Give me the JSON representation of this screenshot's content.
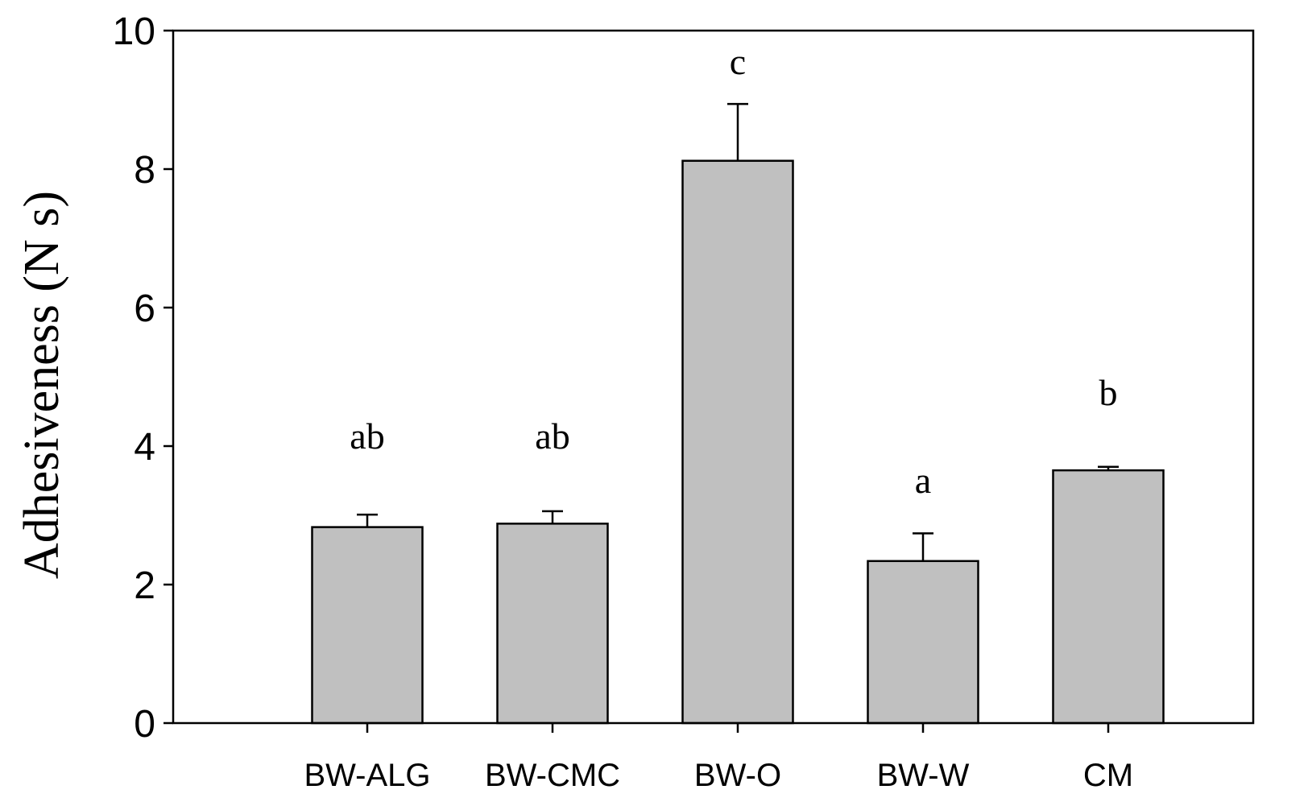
{
  "chart_data": {
    "type": "bar",
    "title": "",
    "xlabel": "",
    "ylabel": "Adhesiveness (N s)",
    "ylim": [
      0,
      10
    ],
    "yticks": [
      0,
      2,
      4,
      6,
      8,
      10
    ],
    "ytick_labels": [
      "0",
      "2",
      "4",
      "6",
      "8",
      "10"
    ],
    "categories": [
      "BW-ALG",
      "BW-CMC",
      "BW-O",
      "BW-W",
      "CM"
    ],
    "values": [
      2.83,
      2.88,
      8.12,
      2.34,
      3.65
    ],
    "errors": [
      0.18,
      0.18,
      0.82,
      0.4,
      0.05
    ],
    "significance_labels": [
      "ab",
      "ab",
      "c",
      "a",
      "b"
    ],
    "grid": false,
    "legend": "none",
    "bar_color": "#c0c0c0",
    "edge_color": "#000000"
  }
}
